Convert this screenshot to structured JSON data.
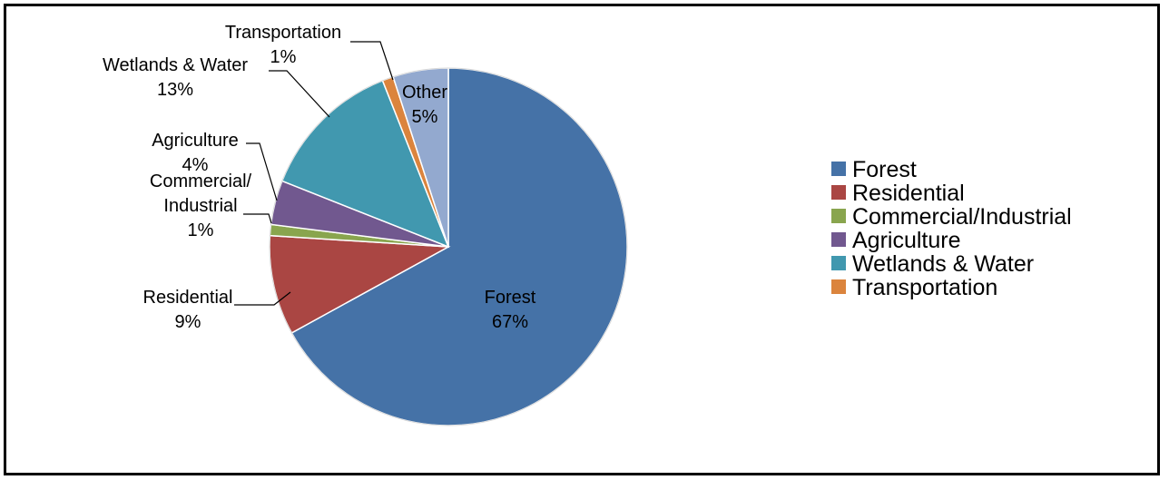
{
  "chart_data": {
    "type": "pie",
    "title": "",
    "start_angle_deg": 0,
    "direction": "clockwise",
    "slices": [
      {
        "name": "Forest",
        "value": 67,
        "label": "67%",
        "color": "#4572A7"
      },
      {
        "name": "Residential",
        "value": 9,
        "label": "9%",
        "color": "#AA4643"
      },
      {
        "name": "Commercial/Industrial",
        "value": 1,
        "label": "1%",
        "color": "#89A54E",
        "label_lines": [
          "Commercial/",
          "Industrial",
          "1%"
        ]
      },
      {
        "name": "Agriculture",
        "value": 4,
        "label": "4%",
        "color": "#71588F"
      },
      {
        "name": "Wetlands & Water",
        "value": 13,
        "label": "13%",
        "color": "#4198AF"
      },
      {
        "name": "Transportation",
        "value": 1,
        "label": "1%",
        "color": "#DB843D"
      },
      {
        "name": "Other",
        "value": 5,
        "label": "5%",
        "color": "#93A9CF"
      }
    ],
    "legend": {
      "position": "right",
      "entries": [
        "Forest",
        "Residential",
        "Commercial/Industrial",
        "Agriculture",
        "Wetlands & Water",
        "Transportation"
      ]
    }
  }
}
